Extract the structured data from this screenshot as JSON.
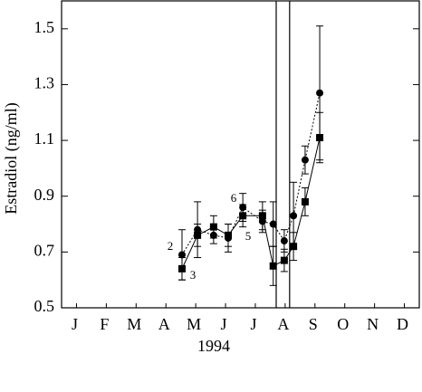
{
  "chart_data": {
    "type": "line",
    "y_label": "Estradiol (ng/ml)",
    "x_label": "1994",
    "xlim": [
      0,
      12
    ],
    "xticks": [
      {
        "value": 0.5,
        "label": "J"
      },
      {
        "value": 1.5,
        "label": "F"
      },
      {
        "value": 2.5,
        "label": "M"
      },
      {
        "value": 3.5,
        "label": "A"
      },
      {
        "value": 4.5,
        "label": "M"
      },
      {
        "value": 5.5,
        "label": "J"
      },
      {
        "value": 6.5,
        "label": "J"
      },
      {
        "value": 7.5,
        "label": "A"
      },
      {
        "value": 8.5,
        "label": "S"
      },
      {
        "value": 9.5,
        "label": "O"
      },
      {
        "value": 10.5,
        "label": "N"
      },
      {
        "value": 11.5,
        "label": "D"
      }
    ],
    "ylim": [
      0.5,
      1.6
    ],
    "yticks": [
      0.5,
      0.7,
      0.9,
      1.1,
      1.3,
      1.5
    ],
    "vertical_lines": [
      7.2,
      7.65
    ],
    "annotations": [
      "2",
      "3",
      "6",
      "5"
    ],
    "series": [
      {
        "marker": "circle",
        "dash": true,
        "color": "#000000",
        "x": [
          4.04,
          4.56,
          5.1,
          5.59,
          6.08,
          6.74,
          7.1,
          7.47,
          7.78,
          8.17,
          8.66
        ],
        "values": [
          0.69,
          0.78,
          0.76,
          0.75,
          0.86,
          0.81,
          0.8,
          0.74,
          0.83,
          1.03,
          1.27
        ],
        "errors": [
          0.09,
          0.1,
          0.03,
          0.05,
          0.05,
          0.04,
          0.08,
          0.04,
          0.12,
          0.05,
          0.24
        ]
      },
      {
        "marker": "square",
        "dash": false,
        "color": "#000000",
        "x": [
          4.04,
          4.56,
          5.1,
          5.59,
          6.08,
          6.74,
          7.1,
          7.47,
          7.78,
          8.17,
          8.66
        ],
        "values": [
          0.64,
          0.76,
          0.79,
          0.76,
          0.83,
          0.83,
          0.65,
          0.67,
          0.72,
          0.88,
          1.11
        ],
        "errors": [
          0.04,
          0.04,
          0.04,
          0.04,
          0.04,
          0.05,
          0.07,
          0.04,
          0.05,
          0.05,
          0.09
        ]
      }
    ]
  }
}
